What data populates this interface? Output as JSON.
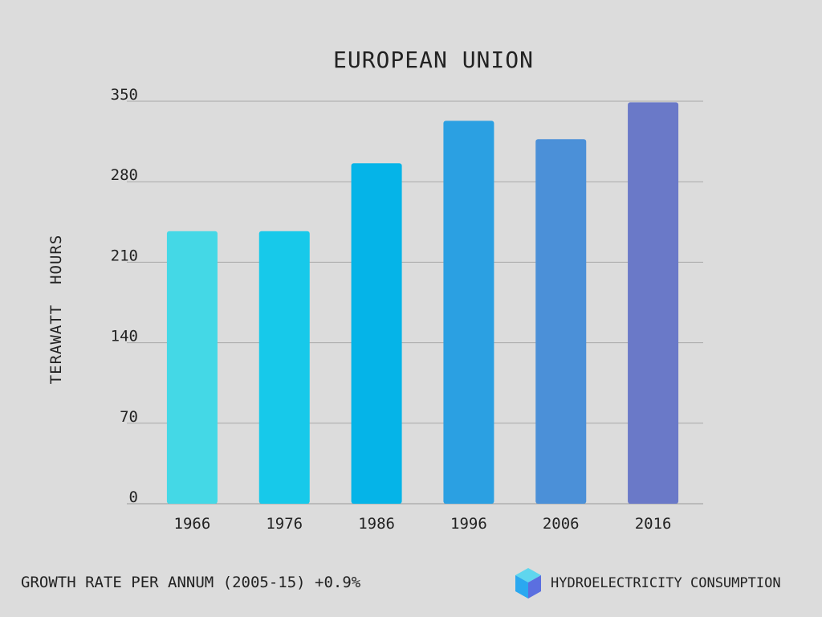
{
  "chart_data": {
    "type": "bar",
    "title": "EUROPEAN UNION",
    "xlabel": "",
    "ylabel": "TERAWATT  HOURS",
    "categories": [
      "1966",
      "1976",
      "1986",
      "1996",
      "2006",
      "2016"
    ],
    "values": [
      237,
      237,
      296,
      333,
      317,
      349
    ],
    "ylim": [
      0,
      350
    ],
    "yticks": [
      0,
      70,
      140,
      210,
      280,
      350
    ],
    "grid": true,
    "colors": [
      "#44d8e6",
      "#17c9ea",
      "#05b4e8",
      "#2ba0e2",
      "#4b90d8",
      "#6a79c8"
    ]
  },
  "footer": {
    "growth_text": "GROWTH RATE PER ANNUM (2005-15) +0.9%",
    "legend_text": "HYDROELECTRICITY CONSUMPTION",
    "legend_icon": "cube-icon"
  }
}
